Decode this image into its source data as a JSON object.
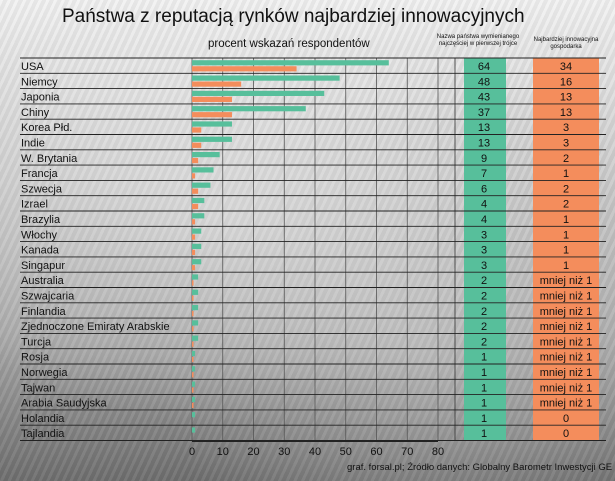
{
  "title": "Państwa z reputacją rynków najbardziej innowacyjnych",
  "subtitle": "procent wskazań respondentów",
  "column_headers": {
    "col1_line1": "Nazwa państwa wymienianego",
    "col1_line2": "najczęściej w pierwszej trójce",
    "col2_line1": "Najbardziej innowacyjna",
    "col2_line2": "gospodarka"
  },
  "source": "graf. forsal.pl; Źródło danych: Globalny Barometr Inwestycji GE",
  "colors": {
    "green": "#57bf9b",
    "orange": "#f48d5c"
  },
  "chart_data": {
    "type": "bar",
    "orientation": "horizontal",
    "categories": [
      "USA",
      "Niemcy",
      "Japonia",
      "Chiny",
      "Korea Płd.",
      "Indie",
      "W. Brytania",
      "Francja",
      "Szwecja",
      "Izrael",
      "Brazylia",
      "Włochy",
      "Kanada",
      "Singapur",
      "Australia",
      "Szwajcaria",
      "Finlandia",
      "Zjednoczone Emiraty Arabskie",
      "Turcja",
      "Rosja",
      "Norwegia",
      "Tajwan",
      "Arabia Saudyjska",
      "Holandia",
      "Tajlandia"
    ],
    "series": [
      {
        "name": "Nazwa państwa wymienianego najczęściej w pierwszej trójce",
        "color": "#57bf9b",
        "values": [
          64,
          48,
          43,
          37,
          13,
          13,
          9,
          7,
          6,
          4,
          4,
          3,
          3,
          3,
          2,
          2,
          2,
          2,
          2,
          1,
          1,
          1,
          1,
          1,
          1
        ],
        "labels": [
          "64",
          "48",
          "43",
          "37",
          "13",
          "13",
          "9",
          "7",
          "6",
          "4",
          "4",
          "3",
          "3",
          "3",
          "2",
          "2",
          "2",
          "2",
          "2",
          "1",
          "1",
          "1",
          "1",
          "1",
          "1"
        ]
      },
      {
        "name": "Najbardziej innowacyjna gospodarka",
        "color": "#f48d5c",
        "values": [
          34,
          16,
          13,
          13,
          3,
          3,
          2,
          1,
          2,
          2,
          1,
          1,
          1,
          1,
          0.5,
          0.5,
          0.5,
          0.5,
          0.5,
          0.5,
          0.5,
          0.5,
          0.5,
          0,
          0
        ],
        "labels": [
          "34",
          "16",
          "13",
          "13",
          "3",
          "3",
          "2",
          "1",
          "2",
          "2",
          "1",
          "1",
          "1",
          "1",
          "mniej niż 1",
          "mniej niż 1",
          "mniej niż 1",
          "mniej niż 1",
          "mniej niż 1",
          "mniej niż 1",
          "mniej niż 1",
          "mniej niż 1",
          "mniej niż 1",
          "0",
          "0"
        ]
      }
    ],
    "xlim": [
      0,
      80
    ],
    "xticks": [
      "0",
      "10",
      "20",
      "30",
      "40",
      "50",
      "60",
      "70",
      "80"
    ],
    "grid": true
  }
}
